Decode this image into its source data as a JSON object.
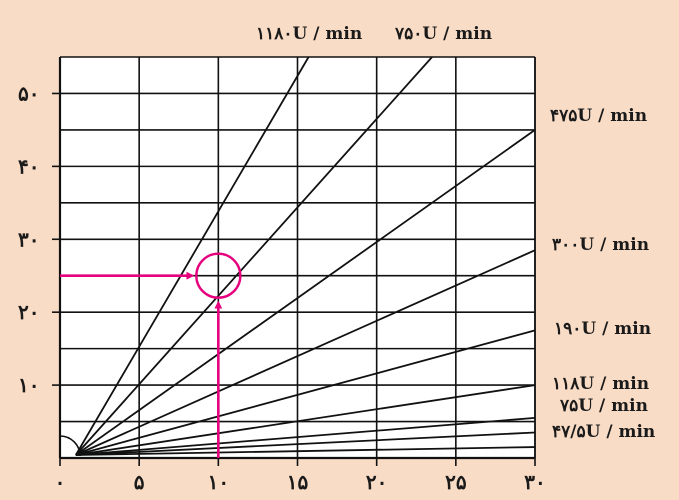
{
  "chart_data": {
    "type": "line",
    "xlim": [
      0,
      30
    ],
    "ylim": [
      0,
      55
    ],
    "grid": true,
    "x_ticks": [
      {
        "value": 0,
        "label": "۰"
      },
      {
        "value": 5,
        "label": "۵"
      },
      {
        "value": 10,
        "label": "۱۰"
      },
      {
        "value": 15,
        "label": "۱۵"
      },
      {
        "value": 20,
        "label": "۲۰"
      },
      {
        "value": 25,
        "label": "۲۵"
      },
      {
        "value": 30,
        "label": "۳۰"
      }
    ],
    "y_ticks": [
      {
        "value": 10,
        "label": "۱۰"
      },
      {
        "value": 20,
        "label": "۲۰"
      },
      {
        "value": 30,
        "label": "۳۰"
      },
      {
        "value": 40,
        "label": "۴۰"
      },
      {
        "value": 50,
        "label": "۵۰"
      }
    ],
    "grid_y_values": [
      5,
      10,
      15,
      20,
      25,
      30,
      35,
      40,
      45,
      50,
      55
    ],
    "origin": [
      1,
      0
    ],
    "series": [
      {
        "name": "۴۷/۵U / min",
        "end": [
          30,
          1.5
        ]
      },
      {
        "name": "۷۵U / min",
        "end": [
          30,
          3.5
        ]
      },
      {
        "name": "",
        "end": [
          30,
          5.5
        ]
      },
      {
        "name": "۱۱۸U / min",
        "end": [
          30,
          10
        ]
      },
      {
        "name": "۱۹۰U / min",
        "end": [
          30,
          17.5
        ]
      },
      {
        "name": "۳۰۰U / min",
        "end": [
          30,
          28.5
        ]
      },
      {
        "name": "۴۷۵U / min",
        "end": [
          30,
          45
        ]
      },
      {
        "name": "۷۵۰U / min",
        "end": [
          23.5,
          55
        ]
      },
      {
        "name": "۱۱۸۰U / min",
        "end": [
          15.7,
          55
        ]
      }
    ],
    "reading": {
      "x": 10,
      "y": 25,
      "color": "#e6007e"
    }
  }
}
